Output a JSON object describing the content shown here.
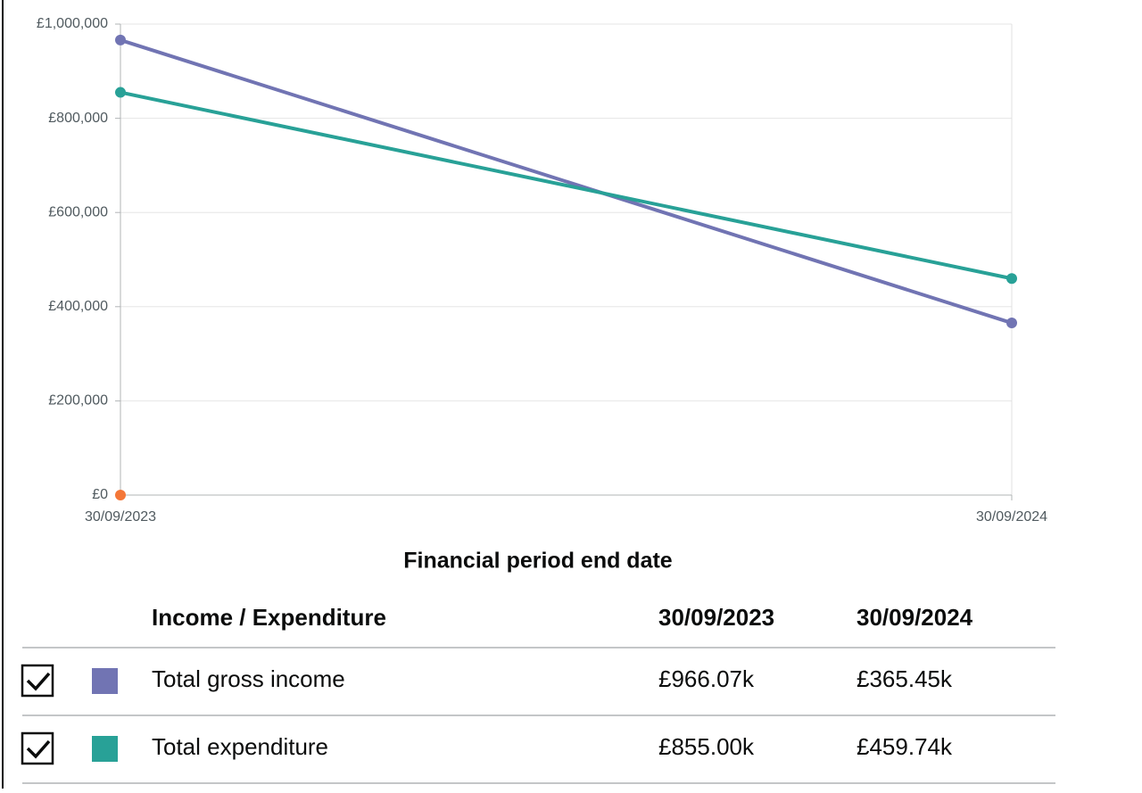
{
  "chart_data": {
    "type": "line",
    "x_label": "Financial period end date",
    "table_header": "Income / Expenditure",
    "categories": [
      "30/09/2023",
      "30/09/2024"
    ],
    "series": [
      {
        "name": "Total gross income",
        "color": "#7174b3",
        "values": [
          966070,
          365450
        ],
        "value_labels": [
          "£966.07k",
          "£365.45k"
        ]
      },
      {
        "name": "Total expenditure",
        "color": "#28a197",
        "values": [
          855000,
          459740
        ],
        "value_labels": [
          "£855.00k",
          "£459.74k"
        ]
      },
      {
        "color": "#f47738",
        "values": [
          0,
          null
        ]
      }
    ],
    "ylim": [
      0,
      1000000
    ],
    "yticks": [
      {
        "value": 0,
        "label": "£0"
      },
      {
        "value": 200000,
        "label": "£200,000"
      },
      {
        "value": 400000,
        "label": "£400,000"
      },
      {
        "value": 600000,
        "label": "£600,000"
      },
      {
        "value": 800000,
        "label": "£800,000"
      },
      {
        "value": 1000000,
        "label": "£1,000,000"
      }
    ],
    "grid": true
  }
}
